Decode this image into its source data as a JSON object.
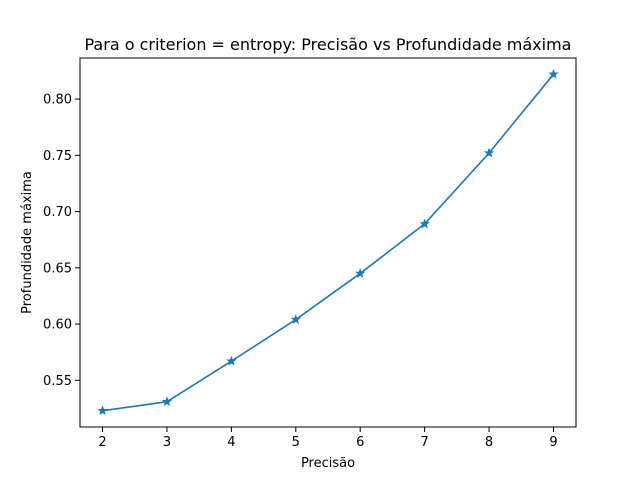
{
  "chart_data": {
    "type": "line",
    "title": "Para o criterion = entropy: Precisão vs Profundidade máxima",
    "xlabel": "Precisão",
    "ylabel": "Profundidade máxima",
    "x": [
      2,
      3,
      4,
      5,
      6,
      7,
      8,
      9
    ],
    "series": [
      {
        "values": [
          0.523,
          0.531,
          0.567,
          0.604,
          0.645,
          0.689,
          0.752,
          0.822
        ],
        "color": "#1f77b4",
        "marker": "star"
      }
    ],
    "xlim": [
      1.65,
      9.35
    ],
    "ylim": [
      0.5085,
      0.8365
    ],
    "xticks": [
      2,
      3,
      4,
      5,
      6,
      7,
      8,
      9
    ],
    "yticks": [
      0.55,
      0.6,
      0.65,
      0.7,
      0.75,
      0.8
    ],
    "ytick_labels": [
      "0.55",
      "0.60",
      "0.65",
      "0.70",
      "0.75",
      "0.80"
    ],
    "grid": false,
    "legend": false
  }
}
